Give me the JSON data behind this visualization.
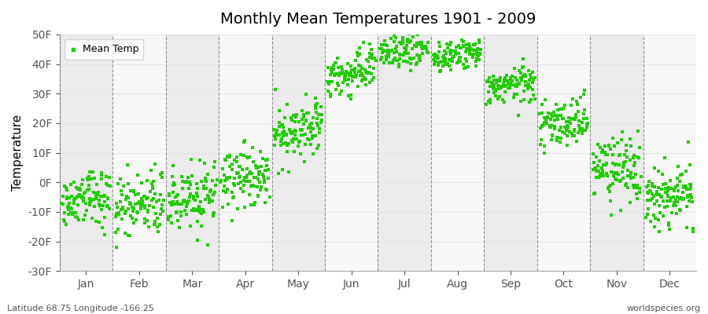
{
  "title": "Monthly Mean Temperatures 1901 - 2009",
  "ylabel": "Temperature",
  "xlabel": "",
  "ylim": [
    -30,
    50
  ],
  "yticks": [
    -30,
    -20,
    -10,
    0,
    10,
    20,
    30,
    40,
    50
  ],
  "ytick_labels": [
    "-30F",
    "-20F",
    "-10F",
    "0F",
    "10F",
    "20F",
    "30F",
    "40F",
    "50F"
  ],
  "months": [
    "Jan",
    "Feb",
    "Mar",
    "Apr",
    "May",
    "Jun",
    "Jul",
    "Aug",
    "Sep",
    "Oct",
    "Nov",
    "Dec"
  ],
  "marker_color": "#22cc00",
  "marker": "s",
  "marker_size": 3.5,
  "legend_label": "Mean Temp",
  "subtitle_left": "Latitude 68.75 Longitude -166.25",
  "watermark": "worldspecies.org",
  "background_color": "#ffffff",
  "band_color_odd": "#ebebeb",
  "band_color_even": "#f8f8f8",
  "n_years": 109,
  "year_start": 1901,
  "year_end": 2009,
  "month_means": [
    -5.5,
    -8.0,
    -5.5,
    1.0,
    18.0,
    37.0,
    45.0,
    43.0,
    33.0,
    20.0,
    4.0,
    -5.0
  ],
  "month_trend": [
    2.0,
    2.0,
    3.0,
    3.0,
    4.0,
    3.0,
    2.5,
    2.5,
    2.0,
    2.0,
    2.0,
    2.0
  ],
  "month_noise": [
    5.0,
    5.5,
    5.5,
    5.0,
    4.5,
    3.5,
    3.0,
    2.5,
    3.0,
    4.0,
    5.5,
    5.5
  ]
}
